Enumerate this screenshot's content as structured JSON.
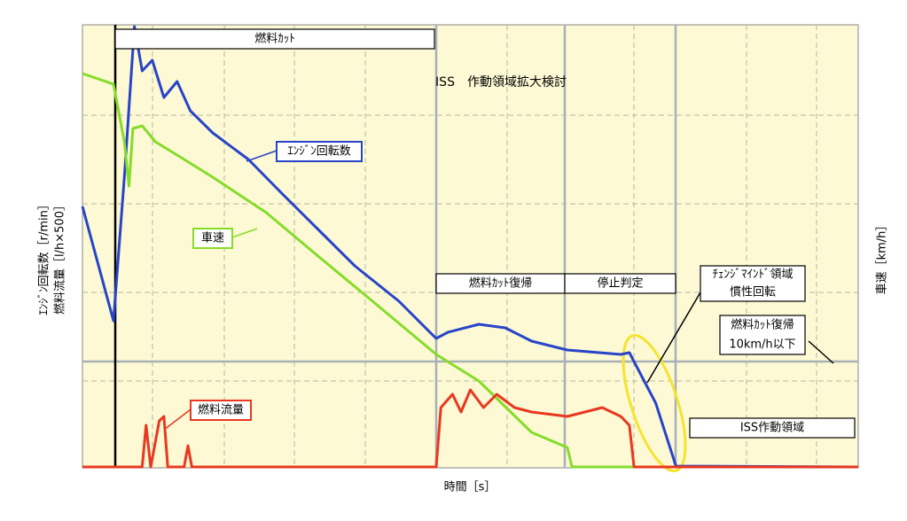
{
  "chart_data": {
    "type": "line",
    "title": "ISS　作動領域拡大検討",
    "x_label": "時間［s］",
    "y_labels": [
      "ｴﾝｼﾞﾝ回転数［r/min］",
      "燃料流量［l/h×500］"
    ],
    "y2_label": "車速［km/h］",
    "xlim": [
      0,
      100
    ],
    "ylim": [
      0,
      100
    ],
    "series": [
      {
        "name": "ｴﾝｼﾞﾝ回転数",
        "color": "#2844c8",
        "x": [
          0,
          4,
          5.4,
          6.7,
          7.7,
          9,
          10.5,
          12.2,
          13.9,
          16.8,
          21.4,
          25.9,
          30.5,
          35.1,
          40.8,
          45.6,
          47.1,
          51.1,
          54.5,
          57.9,
          62.5,
          69.4,
          70.5,
          73.9,
          76.5,
          100
        ],
        "values": [
          59,
          33.2,
          65.6,
          99.6,
          89.6,
          92,
          83.6,
          87.2,
          80.6,
          75.6,
          69.6,
          61.6,
          53.6,
          45.6,
          37.6,
          29.2,
          30.6,
          32.4,
          31.6,
          28.6,
          26.6,
          25.6,
          26,
          14.6,
          0.4,
          0.2
        ]
      },
      {
        "name": "車速",
        "color": "#86dc2a",
        "x": [
          0,
          4,
          5.4,
          6,
          6.5,
          7.7,
          9.4,
          12.2,
          16.8,
          23.7,
          30.5,
          37.4,
          45.6,
          51.1,
          57.9,
          62.5,
          63.1,
          100
        ],
        "values": [
          89,
          86.6,
          73.6,
          63.6,
          76.6,
          77.2,
          73.6,
          70.6,
          65.6,
          57.6,
          47.6,
          37.6,
          25.6,
          19.6,
          8,
          4.6,
          0.2,
          0.2
        ]
      },
      {
        "name": "燃料流量",
        "color": "#e83820",
        "x": [
          0,
          7.7,
          8.2,
          8.8,
          9.9,
          10.5,
          11,
          13.1,
          13.6,
          14.1,
          45.6,
          46.2,
          47.7,
          48.8,
          50,
          51.7,
          53.4,
          55.7,
          57.9,
          62.5,
          67,
          69.4,
          70.5,
          71.1,
          100
        ],
        "values": [
          0.2,
          0.2,
          9.6,
          0.2,
          10.6,
          11.6,
          0.2,
          0.2,
          5,
          0.2,
          0.2,
          13.6,
          16.6,
          12.6,
          17.6,
          13.6,
          16.6,
          13.6,
          12.6,
          11.6,
          13.6,
          11.6,
          9.6,
          0.2,
          0.2
        ]
      }
    ],
    "annotations": [
      "燃料ｶｯﾄ",
      "燃料ｶｯﾄ復帰",
      "停止判定",
      "ﾁｪﾝｼﾞﾏｲﾝﾄﾞ領域",
      "慣性回転",
      "燃料ｶｯﾄ復帰",
      "10km/h以下",
      "ISS作動領域"
    ]
  }
}
